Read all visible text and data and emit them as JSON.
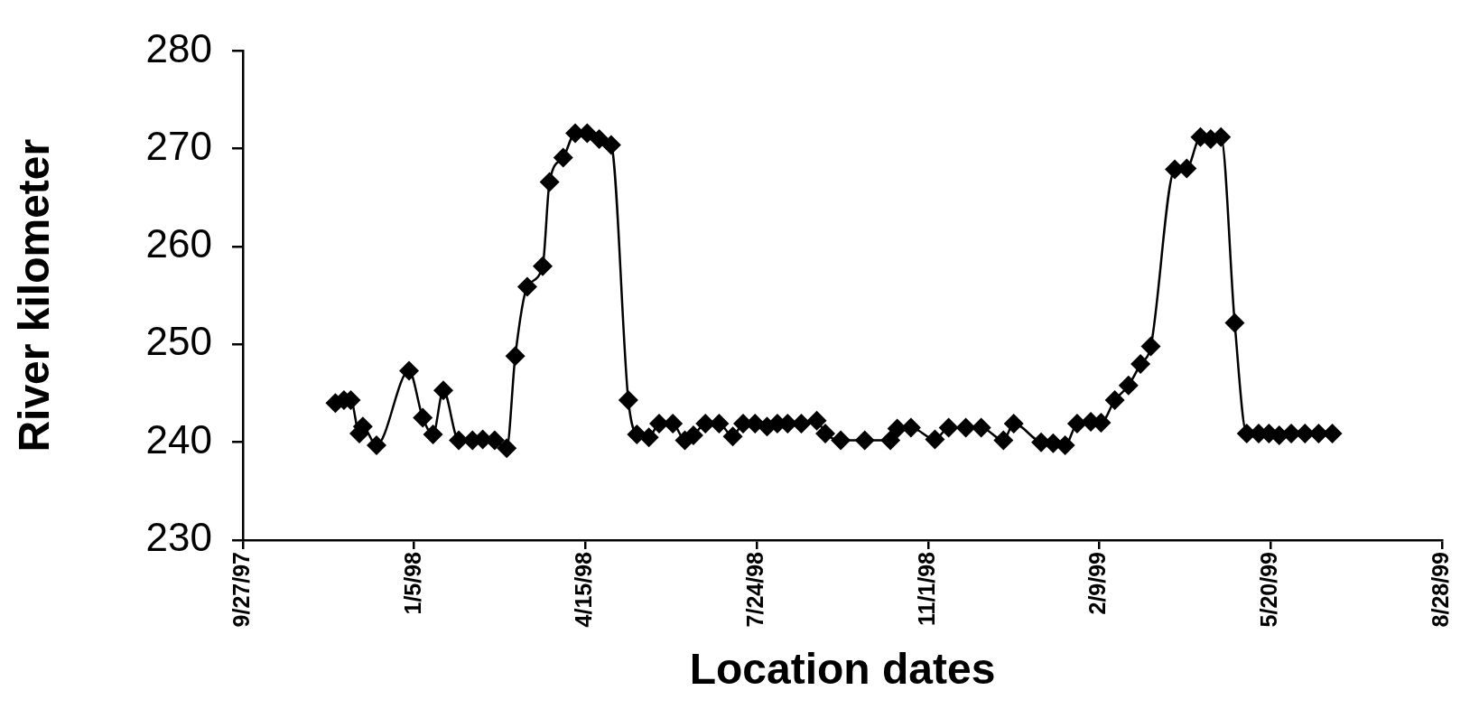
{
  "chart_data": {
    "type": "line",
    "xlabel": "Location dates",
    "ylabel": "River kilometer",
    "x": [
      "1997-11-20",
      "1997-11-25",
      "1997-11-29",
      "1997-12-04",
      "1997-12-06",
      "1997-12-14",
      "1998-01-02",
      "1998-01-10",
      "1998-01-16",
      "1998-01-22",
      "1998-01-31",
      "1998-02-08",
      "1998-02-14",
      "1998-02-21",
      "1998-02-28",
      "1998-03-05",
      "1998-03-12",
      "1998-03-21",
      "1998-03-25",
      "1998-04-02",
      "1998-04-09",
      "1998-04-16",
      "1998-04-23",
      "1998-04-30",
      "1998-05-10",
      "1998-05-15",
      "1998-05-22",
      "1998-05-28",
      "1998-06-05",
      "1998-06-12",
      "1998-06-17",
      "1998-06-24",
      "1998-07-02",
      "1998-07-10",
      "1998-07-16",
      "1998-07-23",
      "1998-07-30",
      "1998-08-05",
      "1998-08-11",
      "1998-08-19",
      "1998-08-28",
      "1998-09-02",
      "1998-09-11",
      "1998-09-25",
      "1998-10-10",
      "1998-10-14",
      "1998-10-22",
      "1998-11-05",
      "1998-11-13",
      "1998-11-23",
      "1998-12-02",
      "1998-12-15",
      "1998-12-21",
      "1999-01-06",
      "1999-01-13",
      "1999-01-20",
      "1999-01-27",
      "1999-02-04",
      "1999-02-10",
      "1999-02-18",
      "1999-02-26",
      "1999-03-05",
      "1999-03-11",
      "1999-03-25",
      "1999-04-01",
      "1999-04-09",
      "1999-04-15",
      "1999-04-21",
      "1999-04-29",
      "1999-05-06",
      "1999-05-13",
      "1999-05-19",
      "1999-05-25",
      "1999-06-01",
      "1999-06-09",
      "1999-06-17",
      "1999-06-25"
    ],
    "series": [
      {
        "color": "#000000",
        "values": [
          244.0,
          244.3,
          244.3,
          240.9,
          241.6,
          239.7,
          247.3,
          242.5,
          240.8,
          245.3,
          240.2,
          240.2,
          240.3,
          240.2,
          239.4,
          248.8,
          255.9,
          258.0,
          266.6,
          269.1,
          271.6,
          271.6,
          271.0,
          270.4,
          244.3,
          240.8,
          240.5,
          241.9,
          241.9,
          240.2,
          240.7,
          241.9,
          241.9,
          240.6,
          241.9,
          241.9,
          241.6,
          241.9,
          241.9,
          241.9,
          242.2,
          240.9,
          240.2,
          240.2,
          240.2,
          241.4,
          241.5,
          240.3,
          241.5,
          241.5,
          241.5,
          240.2,
          241.9,
          240.0,
          239.9,
          239.7,
          241.9,
          242.1,
          242.0,
          244.3,
          245.8,
          248.0,
          249.8,
          267.9,
          268.0,
          271.2,
          271.0,
          271.2,
          252.2,
          240.9,
          240.9,
          240.9,
          240.7,
          240.9,
          240.9,
          240.9,
          240.9
        ]
      }
    ],
    "xlim": [
      "1997-09-27",
      "1999-08-28"
    ],
    "xticks": [
      {
        "value": "1997-09-27",
        "label": "9/27/97"
      },
      {
        "value": "1998-01-05",
        "label": "1/5/98"
      },
      {
        "value": "1998-04-15",
        "label": "4/15/98"
      },
      {
        "value": "1998-07-24",
        "label": "7/24/98"
      },
      {
        "value": "1998-11-01",
        "label": "11/1/98"
      },
      {
        "value": "1999-02-09",
        "label": "2/9/99"
      },
      {
        "value": "1999-05-20",
        "label": "5/20/99"
      },
      {
        "value": "1999-08-28",
        "label": "8/28/99"
      }
    ],
    "ylim": [
      230,
      280
    ],
    "yticks": [
      230,
      240,
      250,
      260,
      270,
      280
    ],
    "grid": false,
    "legend": false,
    "marker": "diamond",
    "line_style": "solid"
  }
}
